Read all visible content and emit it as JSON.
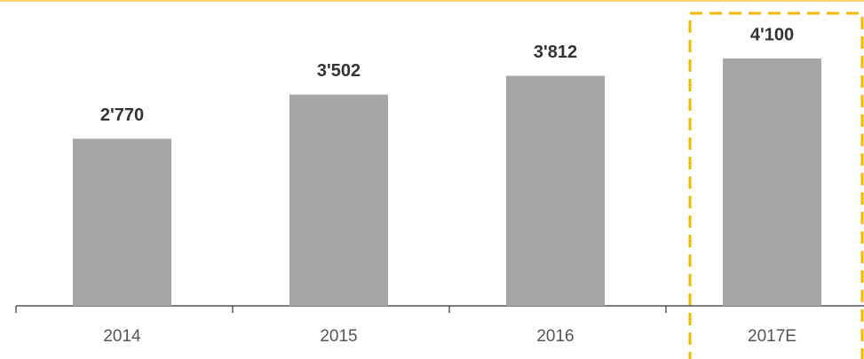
{
  "chart_data": {
    "type": "bar",
    "categories": [
      "2014",
      "2015",
      "2016",
      "2017E"
    ],
    "values": [
      2770,
      3502,
      3812,
      4100
    ],
    "value_labels": [
      "2'770",
      "3'502",
      "3'812",
      "4'100"
    ],
    "color": "#a6a6a6"
  }
}
